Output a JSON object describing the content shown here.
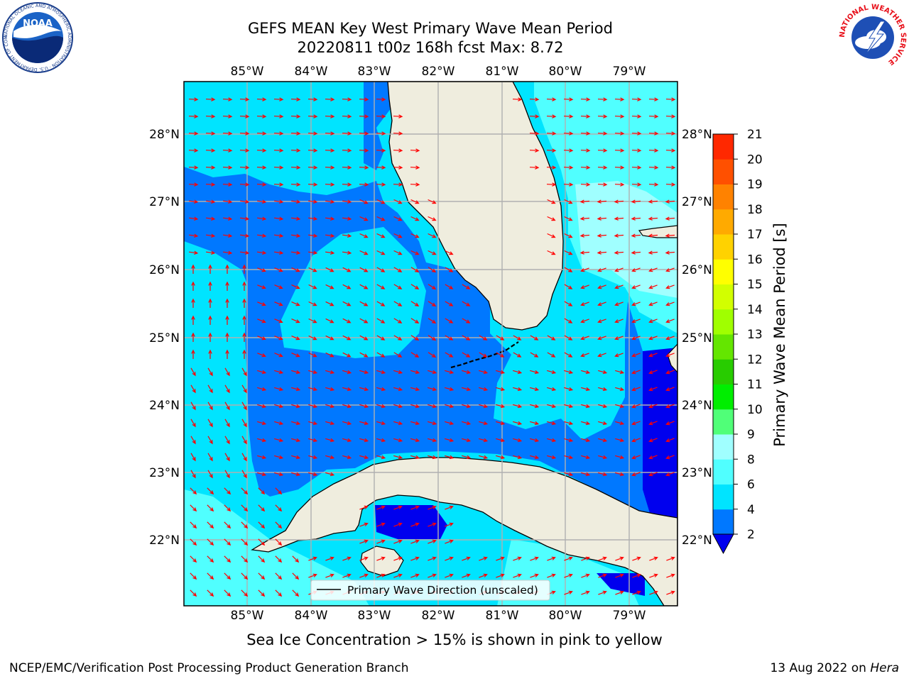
{
  "title": {
    "line1": "GEFS MEAN Key West Primary Wave Mean Period",
    "line2": "20220811 t00z 168h fcst   Max: 8.72"
  },
  "logos": {
    "left": {
      "name": "noaa-logo",
      "text": "NOAA",
      "ring_text": "NATIONAL OCEANIC AND ATMOSPHERIC ADMINISTRATION · U.S. DEPARTMENT OF COMMERCE"
    },
    "right": {
      "name": "nws-logo",
      "ring_text": "NATIONAL WEATHER SERVICE"
    }
  },
  "map": {
    "region": "Key West",
    "lon_labels": [
      "85°W",
      "84°W",
      "83°W",
      "82°W",
      "81°W",
      "80°W",
      "79°W"
    ],
    "lat_labels": [
      "28°N",
      "27°N",
      "26°N",
      "25°N",
      "24°N",
      "23°N",
      "22°N"
    ],
    "legend_label": "Primary Wave Direction (unscaled)",
    "arrow_color": "#ff0000",
    "land_color": "#efedde",
    "grid_color": "#b0b0b0"
  },
  "colorbar": {
    "label": "Primary Wave Mean Period [s]",
    "ticks": [
      "2",
      "4",
      "6",
      "8",
      "9",
      "10",
      "11",
      "12",
      "13",
      "14",
      "15",
      "16",
      "17",
      "18",
      "19",
      "20",
      "21"
    ],
    "colors": [
      "#0000ee",
      "#0078ff",
      "#00e4ff",
      "#50ffff",
      "#a0ffff",
      "#50ff78",
      "#00ee00",
      "#28cc00",
      "#64e600",
      "#a0ff00",
      "#d2ff00",
      "#ffff00",
      "#ffd200",
      "#ffaa00",
      "#ff8200",
      "#ff5000",
      "#ff2800",
      "#ff0000"
    ],
    "under_color": "#0000ee"
  },
  "footnote": "Sea Ice Concentration > 15% is shown in pink to yellow",
  "footer": {
    "left": "NCEP/EMC/Verification Post Processing Product Generation Branch",
    "right_date": "13 Aug 2022 on ",
    "right_host": "Hera"
  }
}
